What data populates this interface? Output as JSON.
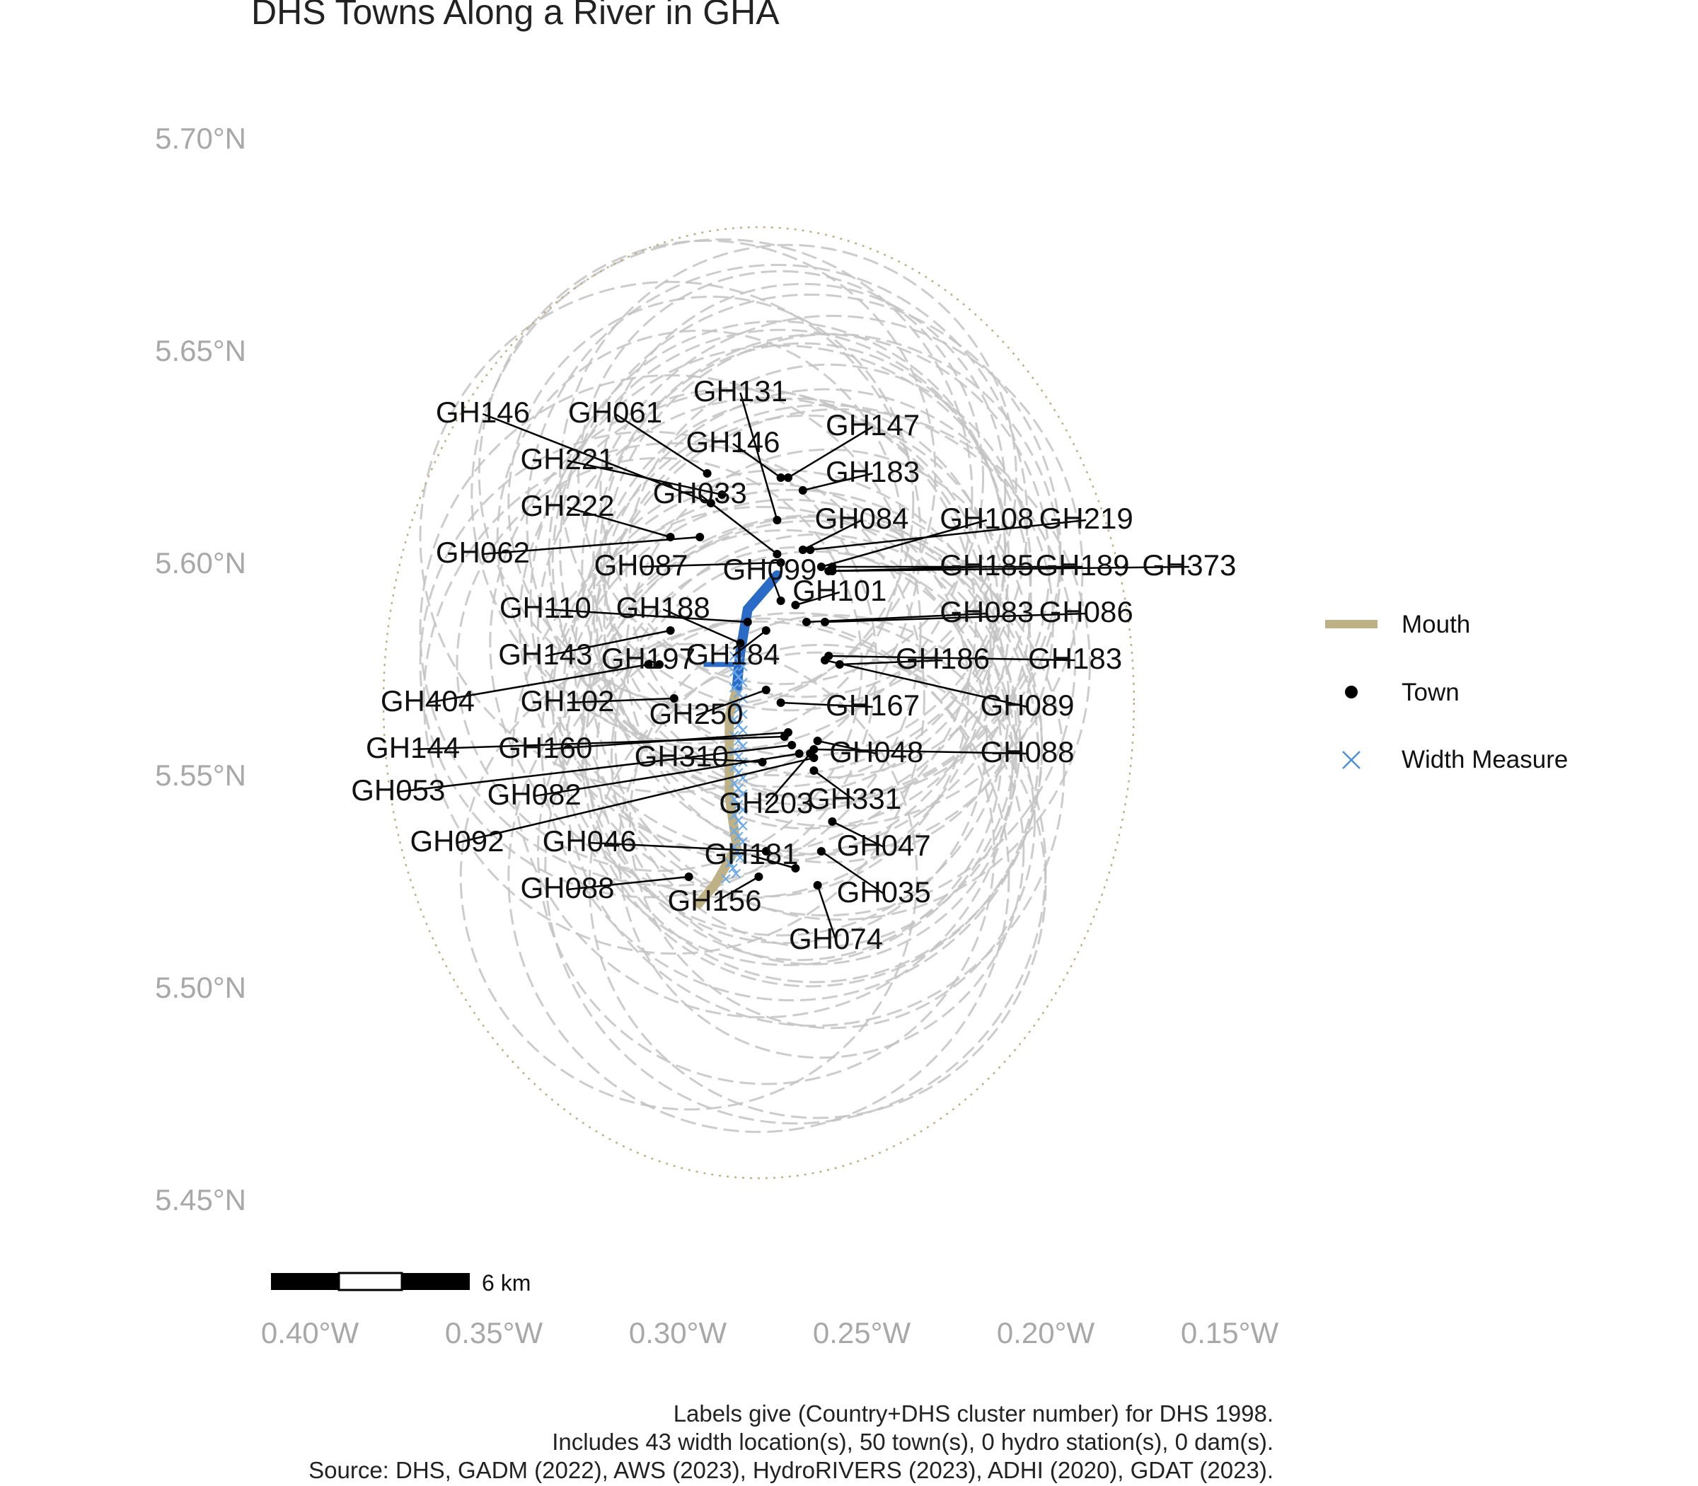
{
  "title": "DHS Towns Along a River in GHA",
  "caption": [
    "Labels give (Country+DHS cluster number) for DHS 1998.",
    "Includes 43 width location(s), 50 town(s), 0 hydro station(s), 0 dam(s).",
    "Source: DHS, GADM (2022), AWS (2023), HydroRIVERS (2023), ADHI (2020), GDAT (2023)."
  ],
  "axes": {
    "x_ticks": [
      "0.40°W",
      "0.35°W",
      "0.30°W",
      "0.25°W",
      "0.20°W",
      "0.15°W"
    ],
    "x_values": [
      -0.4,
      -0.35,
      -0.3,
      -0.25,
      -0.2,
      -0.15
    ],
    "y_ticks": [
      "5.70°N",
      "5.65°N",
      "5.60°N",
      "5.55°N",
      "5.50°N",
      "5.45°N"
    ],
    "y_values": [
      5.7,
      5.65,
      5.6,
      5.55,
      5.5,
      5.45
    ],
    "xlim": [
      -0.41,
      -0.145
    ],
    "ylim": [
      5.435,
      5.72
    ],
    "grid": false
  },
  "legend": {
    "position": "right",
    "items": [
      {
        "label": "Mouth",
        "symbol": "line",
        "color": "#bdb185"
      },
      {
        "label": "Town",
        "symbol": "dot",
        "color": "#000000"
      },
      {
        "label": "Width Measure",
        "symbol": "cross",
        "color": "#4a90d9"
      }
    ]
  },
  "scale_bar": {
    "label": "6 km"
  },
  "colors": {
    "buffer": "#c3c3c3",
    "river": "#2a6bc7",
    "mouth": "#bdb185",
    "width": "#6aa8e8",
    "town": "#000000",
    "axis_text": "#a8a8a8"
  },
  "towns": [
    {
      "label": "GH146",
      "lon": -0.291,
      "lat": 5.614,
      "label_lon": -0.353,
      "label_lat": 5.633
    },
    {
      "label": "GH061",
      "lon": -0.292,
      "lat": 5.621,
      "label_lon": -0.317,
      "label_lat": 5.633
    },
    {
      "label": "GH131",
      "lon": -0.273,
      "lat": 5.61,
      "label_lon": -0.283,
      "label_lat": 5.638
    },
    {
      "label": "GH146",
      "lon": -0.272,
      "lat": 5.62,
      "label_lon": -0.285,
      "label_lat": 5.626
    },
    {
      "label": "GH147",
      "lon": -0.27,
      "lat": 5.62,
      "label_lon": -0.247,
      "label_lat": 5.63
    },
    {
      "label": "GH221",
      "lon": -0.288,
      "lat": 5.616,
      "label_lon": -0.33,
      "label_lat": 5.622
    },
    {
      "label": "GH183",
      "lon": -0.266,
      "lat": 5.617,
      "label_lon": -0.247,
      "label_lat": 5.619
    },
    {
      "label": "GH033",
      "lon": -0.273,
      "lat": 5.602,
      "label_lon": -0.294,
      "label_lat": 5.614
    },
    {
      "label": "GH222",
      "lon": -0.302,
      "lat": 5.606,
      "label_lon": -0.33,
      "label_lat": 5.611
    },
    {
      "label": "GH084",
      "lon": -0.266,
      "lat": 5.603,
      "label_lon": -0.25,
      "label_lat": 5.608
    },
    {
      "label": "GH108",
      "lon": -0.261,
      "lat": 5.599,
      "label_lon": -0.216,
      "label_lat": 5.608
    },
    {
      "label": "GH219",
      "lon": -0.264,
      "lat": 5.603,
      "label_lon": -0.189,
      "label_lat": 5.608
    },
    {
      "label": "GH062",
      "lon": -0.294,
      "lat": 5.606,
      "label_lon": -0.353,
      "label_lat": 5.6
    },
    {
      "label": "GH087",
      "lon": -0.272,
      "lat": 5.6,
      "label_lon": -0.31,
      "label_lat": 5.597
    },
    {
      "label": "GH099",
      "lon": -0.272,
      "lat": 5.591,
      "label_lon": -0.275,
      "label_lat": 5.596
    },
    {
      "label": "GH185",
      "lon": -0.259,
      "lat": 5.598,
      "label_lon": -0.216,
      "label_lat": 5.597
    },
    {
      "label": "GH189",
      "lon": -0.258,
      "lat": 5.599,
      "label_lon": -0.19,
      "label_lat": 5.597
    },
    {
      "label": "GH373",
      "lon": -0.258,
      "lat": 5.598,
      "label_lon": -0.161,
      "label_lat": 5.597
    },
    {
      "label": "GH101",
      "lon": -0.268,
      "lat": 5.59,
      "label_lon": -0.256,
      "label_lat": 5.591
    },
    {
      "label": "GH110",
      "lon": -0.281,
      "lat": 5.586,
      "label_lon": -0.336,
      "label_lat": 5.587
    },
    {
      "label": "GH188",
      "lon": -0.283,
      "lat": 5.581,
      "label_lon": -0.304,
      "label_lat": 5.587
    },
    {
      "label": "GH083",
      "lon": -0.265,
      "lat": 5.586,
      "label_lon": -0.216,
      "label_lat": 5.586
    },
    {
      "label": "GH086",
      "lon": -0.26,
      "lat": 5.586,
      "label_lon": -0.189,
      "label_lat": 5.586
    },
    {
      "label": "GH143",
      "lon": -0.302,
      "lat": 5.584,
      "label_lon": -0.336,
      "label_lat": 5.576
    },
    {
      "label": "GH197",
      "lon": -0.305,
      "lat": 5.576,
      "label_lon": -0.308,
      "label_lat": 5.575
    },
    {
      "label": "GH184",
      "lon": -0.276,
      "lat": 5.584,
      "label_lon": -0.285,
      "label_lat": 5.576
    },
    {
      "label": "GH186",
      "lon": -0.256,
      "lat": 5.576,
      "label_lon": -0.228,
      "label_lat": 5.575
    },
    {
      "label": "GH183",
      "lon": -0.259,
      "lat": 5.578,
      "label_lon": -0.192,
      "label_lat": 5.575
    },
    {
      "label": "GH404",
      "lon": -0.308,
      "lat": 5.576,
      "label_lon": -0.368,
      "label_lat": 5.565
    },
    {
      "label": "GH102",
      "lon": -0.301,
      "lat": 5.568,
      "label_lon": -0.33,
      "label_lat": 5.565
    },
    {
      "label": "GH250",
      "lon": -0.276,
      "lat": 5.57,
      "label_lon": -0.295,
      "label_lat": 5.562
    },
    {
      "label": "GH167",
      "lon": -0.272,
      "lat": 5.567,
      "label_lon": -0.247,
      "label_lat": 5.564
    },
    {
      "label": "GH089",
      "lon": -0.26,
      "lat": 5.577,
      "label_lon": -0.205,
      "label_lat": 5.564
    },
    {
      "label": "GH144",
      "lon": -0.271,
      "lat": 5.559,
      "label_lon": -0.372,
      "label_lat": 5.554
    },
    {
      "label": "GH160",
      "lon": -0.27,
      "lat": 5.56,
      "label_lon": -0.336,
      "label_lat": 5.554
    },
    {
      "label": "GH310",
      "lon": -0.277,
      "lat": 5.553,
      "label_lon": -0.299,
      "label_lat": 5.552
    },
    {
      "label": "GH048",
      "lon": -0.262,
      "lat": 5.558,
      "label_lon": -0.246,
      "label_lat": 5.553
    },
    {
      "label": "GH088",
      "lon": -0.263,
      "lat": 5.556,
      "label_lon": -0.205,
      "label_lat": 5.553
    },
    {
      "label": "GH053",
      "lon": -0.269,
      "lat": 5.557,
      "label_lon": -0.376,
      "label_lat": 5.544
    },
    {
      "label": "GH082",
      "lon": -0.267,
      "lat": 5.555,
      "label_lon": -0.339,
      "label_lat": 5.543
    },
    {
      "label": "GH203",
      "lon": -0.264,
      "lat": 5.555,
      "label_lon": -0.276,
      "label_lat": 5.541
    },
    {
      "label": "GH331",
      "lon": -0.263,
      "lat": 5.551,
      "label_lon": -0.252,
      "label_lat": 5.542
    },
    {
      "label": "GH092",
      "lon": -0.263,
      "lat": 5.554,
      "label_lon": -0.36,
      "label_lat": 5.532
    },
    {
      "label": "GH046",
      "lon": -0.276,
      "lat": 5.532,
      "label_lon": -0.324,
      "label_lat": 5.532
    },
    {
      "label": "GH181",
      "lon": -0.268,
      "lat": 5.528,
      "label_lon": -0.28,
      "label_lat": 5.529
    },
    {
      "label": "GH047",
      "lon": -0.258,
      "lat": 5.539,
      "label_lon": -0.244,
      "label_lat": 5.531
    },
    {
      "label": "GH088",
      "lon": -0.297,
      "lat": 5.526,
      "label_lon": -0.33,
      "label_lat": 5.521
    },
    {
      "label": "GH156",
      "lon": -0.278,
      "lat": 5.526,
      "label_lon": -0.29,
      "label_lat": 5.518
    },
    {
      "label": "GH035",
      "lon": -0.261,
      "lat": 5.532,
      "label_lon": -0.244,
      "label_lat": 5.52
    },
    {
      "label": "GH074",
      "lon": -0.262,
      "lat": 5.524,
      "label_lon": -0.257,
      "label_lat": 5.509
    }
  ]
}
